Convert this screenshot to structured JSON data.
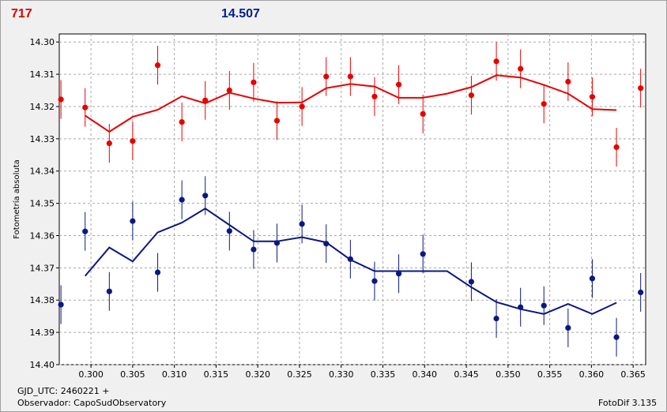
{
  "header": {
    "left_value": "717",
    "right_value": "14.507"
  },
  "footer": {
    "gjd": "GJD_UTC: 2460221 +",
    "observer": "Observador: CapoSudObservatory",
    "software": "FotoDif 3.135"
  },
  "colors": {
    "series_red": "#e80000",
    "series_blue": "#0a1880",
    "grid": "#a8a8a8",
    "plot_bg": "#ffffff",
    "window_bg": "#f0f0f0"
  },
  "chart_data": {
    "type": "scatter",
    "title": "",
    "xlabel": "",
    "ylabel": "Fotometría absoluta",
    "xlim": [
      0.2962,
      0.3665
    ],
    "ylim": [
      14.4,
      14.2975
    ],
    "y_inverted": true,
    "grid": true,
    "x_ticks": [
      "0.300",
      "0.305",
      "0.310",
      "0.315",
      "0.320",
      "0.325",
      "0.330",
      "0.335",
      "0.340",
      "0.345",
      "0.350",
      "0.355",
      "0.360",
      "0.365"
    ],
    "x_tick_values": [
      0.3,
      0.305,
      0.31,
      0.315,
      0.32,
      0.325,
      0.33,
      0.335,
      0.34,
      0.345,
      0.35,
      0.355,
      0.36,
      0.365
    ],
    "y_ticks": [
      "14.30",
      "14.31",
      "14.32",
      "14.33",
      "14.34",
      "14.35",
      "14.36",
      "14.37",
      "14.38",
      "14.39",
      "14.40"
    ],
    "y_tick_values": [
      14.3,
      14.31,
      14.32,
      14.33,
      14.34,
      14.35,
      14.36,
      14.37,
      14.38,
      14.39,
      14.4
    ],
    "series": [
      {
        "color": "#e80000",
        "points": [
          {
            "x": 0.2964,
            "y": 14.3178,
            "err": 0.006
          },
          {
            "x": 0.2993,
            "y": 14.3203,
            "err": 0.006
          },
          {
            "x": 0.3022,
            "y": 14.3314,
            "err": 0.006
          },
          {
            "x": 0.305,
            "y": 14.3307,
            "err": 0.006
          },
          {
            "x": 0.308,
            "y": 14.3072,
            "err": 0.006
          },
          {
            "x": 0.3109,
            "y": 14.3248,
            "err": 0.006
          },
          {
            "x": 0.3137,
            "y": 14.3181,
            "err": 0.006
          },
          {
            "x": 0.3166,
            "y": 14.315,
            "err": 0.006
          },
          {
            "x": 0.3195,
            "y": 14.3125,
            "err": 0.006
          },
          {
            "x": 0.3223,
            "y": 14.3244,
            "err": 0.006
          },
          {
            "x": 0.3253,
            "y": 14.32,
            "err": 0.006
          },
          {
            "x": 0.3282,
            "y": 14.3107,
            "err": 0.006
          },
          {
            "x": 0.3311,
            "y": 14.3107,
            "err": 0.006
          },
          {
            "x": 0.334,
            "y": 14.3169,
            "err": 0.006
          },
          {
            "x": 0.3369,
            "y": 14.3132,
            "err": 0.006
          },
          {
            "x": 0.3398,
            "y": 14.3223,
            "err": 0.006
          },
          {
            "x": 0.3456,
            "y": 14.3165,
            "err": 0.006
          },
          {
            "x": 0.3486,
            "y": 14.306,
            "err": 0.006
          },
          {
            "x": 0.3515,
            "y": 14.3083,
            "err": 0.006
          },
          {
            "x": 0.3543,
            "y": 14.3192,
            "err": 0.006
          },
          {
            "x": 0.3572,
            "y": 14.3123,
            "err": 0.006
          },
          {
            "x": 0.3601,
            "y": 14.317,
            "err": 0.006
          },
          {
            "x": 0.363,
            "y": 14.3326,
            "err": 0.006
          },
          {
            "x": 0.3659,
            "y": 14.3143,
            "err": 0.006
          }
        ],
        "trend_x": [
          0.2993,
          0.3022,
          0.305,
          0.308,
          0.3109,
          0.3137,
          0.3166,
          0.3195,
          0.3223,
          0.3253,
          0.3282,
          0.3311,
          0.334,
          0.3369,
          0.3398,
          0.3427,
          0.3456,
          0.3486,
          0.3515,
          0.3543,
          0.3572,
          0.3601,
          0.363
        ],
        "trend_y": [
          14.3228,
          14.3278,
          14.3232,
          14.321,
          14.3168,
          14.319,
          14.3157,
          14.3175,
          14.3188,
          14.3187,
          14.3143,
          14.313,
          14.3138,
          14.3173,
          14.3173,
          14.316,
          14.314,
          14.3103,
          14.311,
          14.3133,
          14.316,
          14.3208,
          14.3211
        ]
      },
      {
        "color": "#0a1880",
        "points": [
          {
            "x": 0.2964,
            "y": 14.3814,
            "err": 0.006
          },
          {
            "x": 0.2993,
            "y": 14.3587,
            "err": 0.006
          },
          {
            "x": 0.3022,
            "y": 14.3773,
            "err": 0.006
          },
          {
            "x": 0.305,
            "y": 14.3555,
            "err": 0.006
          },
          {
            "x": 0.308,
            "y": 14.3714,
            "err": 0.006
          },
          {
            "x": 0.3109,
            "y": 14.3489,
            "err": 0.006
          },
          {
            "x": 0.3137,
            "y": 14.3476,
            "err": 0.006
          },
          {
            "x": 0.3166,
            "y": 14.3586,
            "err": 0.006
          },
          {
            "x": 0.3195,
            "y": 14.3643,
            "err": 0.006
          },
          {
            "x": 0.3223,
            "y": 14.3623,
            "err": 0.006
          },
          {
            "x": 0.3253,
            "y": 14.3564,
            "err": 0.006
          },
          {
            "x": 0.3282,
            "y": 14.3625,
            "err": 0.006
          },
          {
            "x": 0.3311,
            "y": 14.3673,
            "err": 0.006
          },
          {
            "x": 0.334,
            "y": 14.3741,
            "err": 0.006
          },
          {
            "x": 0.3369,
            "y": 14.3718,
            "err": 0.006
          },
          {
            "x": 0.3398,
            "y": 14.3657,
            "err": 0.006
          },
          {
            "x": 0.3456,
            "y": 14.3743,
            "err": 0.006
          },
          {
            "x": 0.3486,
            "y": 14.3857,
            "err": 0.006
          },
          {
            "x": 0.3515,
            "y": 14.3822,
            "err": 0.006
          },
          {
            "x": 0.3543,
            "y": 14.3817,
            "err": 0.006
          },
          {
            "x": 0.3572,
            "y": 14.3886,
            "err": 0.006
          },
          {
            "x": 0.3601,
            "y": 14.3733,
            "err": 0.006
          },
          {
            "x": 0.363,
            "y": 14.3915,
            "err": 0.006
          },
          {
            "x": 0.3659,
            "y": 14.3776,
            "err": 0.006
          }
        ],
        "trend_x": [
          0.2993,
          0.3022,
          0.305,
          0.308,
          0.3109,
          0.3137,
          0.3166,
          0.3195,
          0.3223,
          0.3253,
          0.3282,
          0.3311,
          0.334,
          0.3369,
          0.3398,
          0.3427,
          0.3456,
          0.3486,
          0.3515,
          0.3543,
          0.3572,
          0.3601,
          0.363
        ],
        "trend_y": [
          14.3725,
          14.3637,
          14.368,
          14.359,
          14.356,
          14.3516,
          14.3567,
          14.3618,
          14.3618,
          14.3605,
          14.3621,
          14.3675,
          14.371,
          14.371,
          14.371,
          14.371,
          14.376,
          14.3806,
          14.3828,
          14.3843,
          14.3812,
          14.3843,
          14.3808
        ]
      }
    ]
  }
}
